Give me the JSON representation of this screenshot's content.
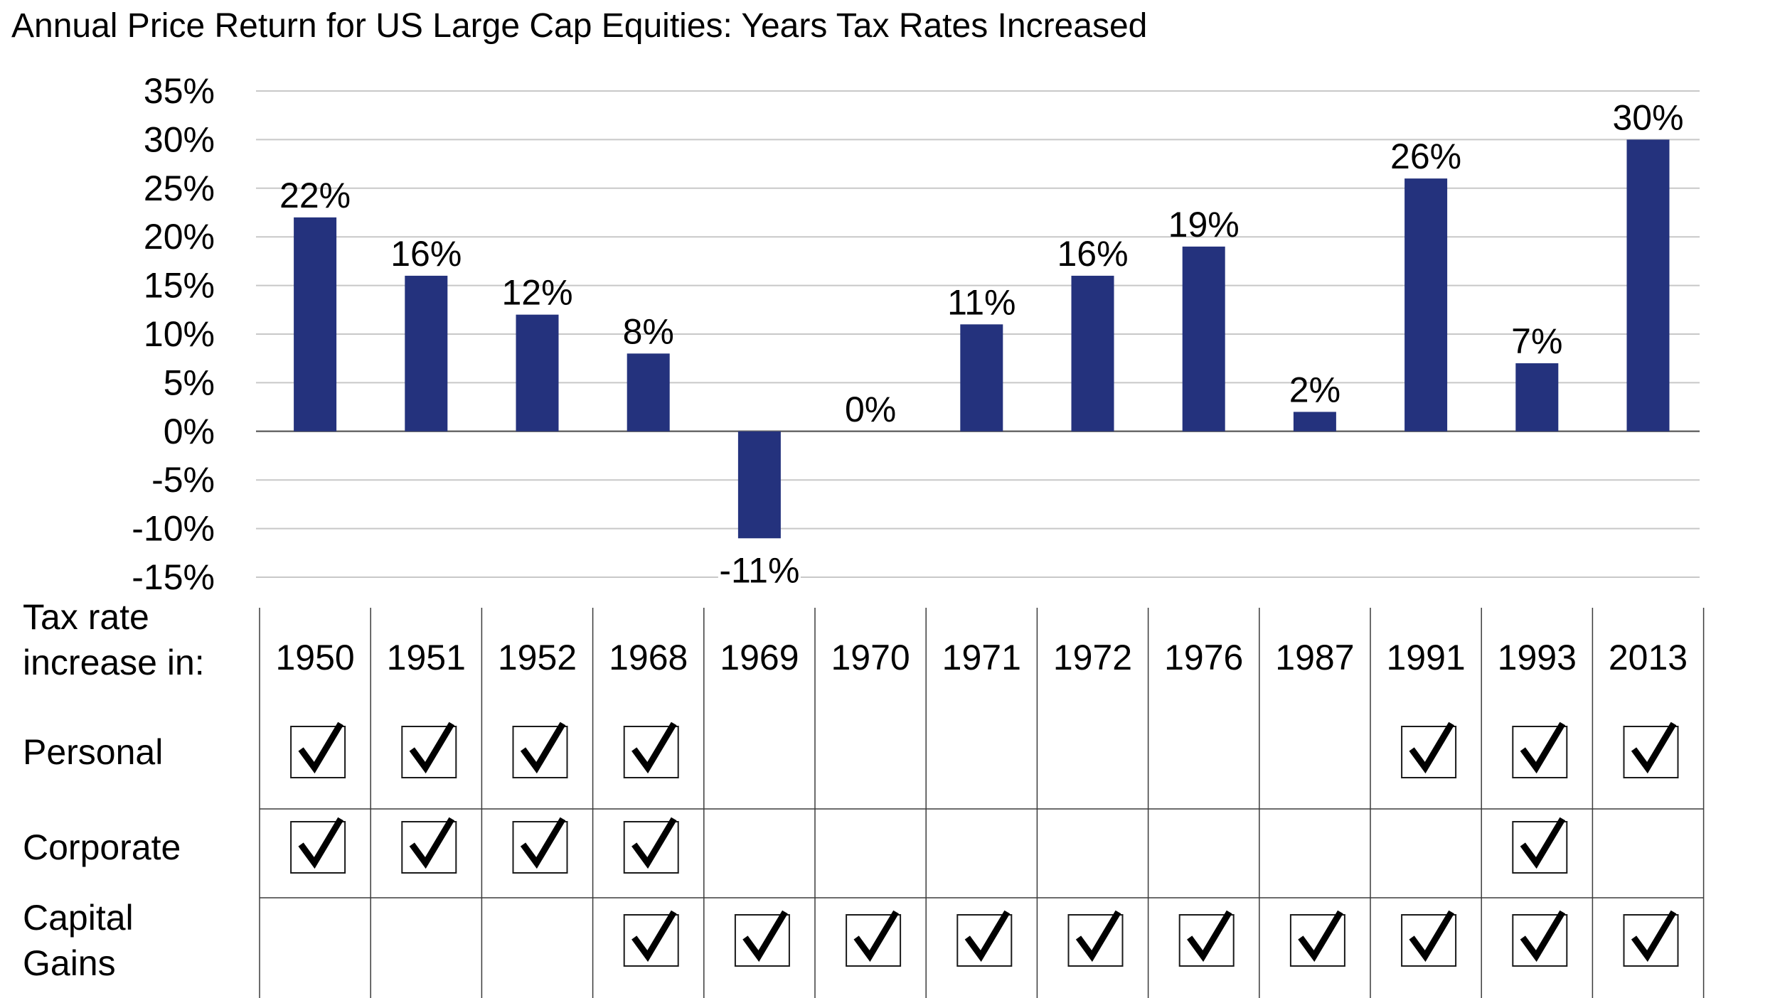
{
  "chart_data": {
    "type": "bar",
    "title": "Annual Price Return for US Large Cap Equities: Years Tax Rates Increased",
    "categories": [
      "1950",
      "1951",
      "1952",
      "1968",
      "1969",
      "1970",
      "1971",
      "1972",
      "1976",
      "1987",
      "1991",
      "1993",
      "2013"
    ],
    "values": [
      22,
      16,
      12,
      8,
      -11,
      0,
      11,
      16,
      19,
      2,
      26,
      7,
      30
    ],
    "data_labels": [
      "22%",
      "16%",
      "12%",
      "8%",
      "-11%",
      "0%",
      "11%",
      "16%",
      "19%",
      "2%",
      "26%",
      "7%",
      "30%"
    ],
    "ylim": [
      -15,
      35
    ],
    "yticks": [
      35,
      30,
      25,
      20,
      15,
      10,
      5,
      0,
      -5,
      -10,
      -15
    ],
    "ytick_labels": [
      "35%",
      "30%",
      "25%",
      "20%",
      "15%",
      "10%",
      "5%",
      "0%",
      "-5%",
      "-10%",
      "-15%"
    ],
    "bar_color": "#24327d",
    "grid": true,
    "table": {
      "header_label": [
        "Tax rate",
        "increase in:"
      ],
      "rows": [
        {
          "label": [
            "Personal"
          ],
          "checks": [
            true,
            true,
            true,
            true,
            false,
            false,
            false,
            false,
            false,
            false,
            true,
            true,
            true
          ]
        },
        {
          "label": [
            "Corporate"
          ],
          "checks": [
            true,
            true,
            true,
            true,
            false,
            false,
            false,
            false,
            false,
            false,
            false,
            true,
            false
          ]
        },
        {
          "label": [
            "Capital",
            "Gains"
          ],
          "checks": [
            false,
            false,
            false,
            true,
            true,
            true,
            true,
            true,
            true,
            true,
            true,
            true,
            true
          ]
        }
      ]
    }
  }
}
